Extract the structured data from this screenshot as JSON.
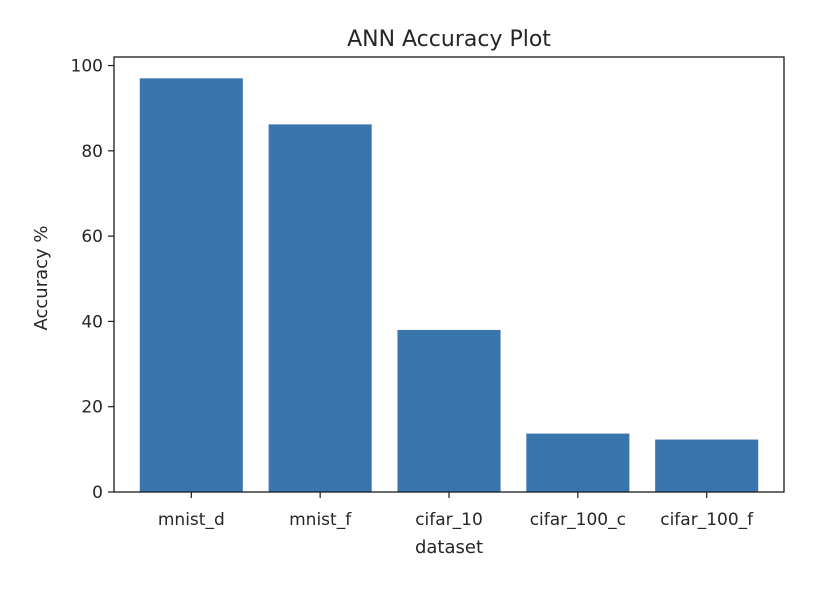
{
  "chart_data": {
    "type": "bar",
    "title": "ANN Accuracy Plot",
    "xlabel": "dataset",
    "ylabel": "Accuracy %",
    "categories": [
      "mnist_d",
      "mnist_f",
      "cifar_10",
      "cifar_100_c",
      "cifar_100_f"
    ],
    "values": [
      97.0,
      86.2,
      38.0,
      13.7,
      12.3
    ],
    "ylim": [
      0,
      102
    ],
    "yticks": [
      "0",
      "20",
      "40",
      "60",
      "80",
      "100"
    ],
    "bar_color": "#3a75ae",
    "grid": false,
    "legend": "none"
  }
}
